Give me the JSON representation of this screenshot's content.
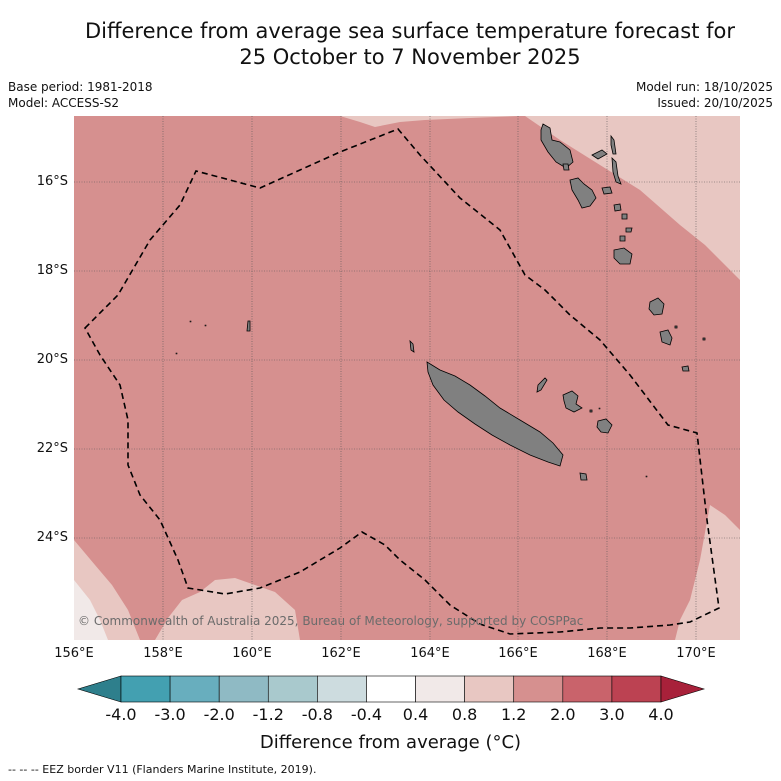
{
  "title_line1": "Difference from average sea surface temperature forecast for",
  "title_line2": "25 October to 7 November 2025",
  "base_period": "Base period: 1981-2018",
  "model": "Model: ACCESS-S2",
  "model_run": "Model run: 18/10/2025",
  "issued": "Issued: 20/10/2025",
  "latitude_labels": [
    "16°S",
    "18°S",
    "20°S",
    "22°S",
    "24°S"
  ],
  "longitude_labels": [
    "156°E",
    "158°E",
    "160°E",
    "162°E",
    "164°E",
    "166°E",
    "168°E",
    "170°E"
  ],
  "copyright": "© Commonwealth of Australia 2025, Bureau of Meteorology, supported by COSPPac",
  "colorbar": {
    "labels": [
      "-4.0",
      "-3.0",
      "-2.0",
      "-1.2",
      "-0.8",
      "-0.4",
      "0.4",
      "0.8",
      "1.2",
      "2.0",
      "3.0",
      "4.0"
    ],
    "colors": [
      "#2e7f8c",
      "#43a0b1",
      "#68aebe",
      "#8fbac4",
      "#a9c9cd",
      "#cddcdf",
      "#ffffff",
      "#f1e9e8",
      "#e8c7c2",
      "#d6908f",
      "#c9636b",
      "#bc4252",
      "#a8213a"
    ],
    "title": "Difference from average (°C)"
  },
  "legend_note": "--  --  -- EEZ border V11 (Flanders Marine Institute, 2019).",
  "fill_colors": {
    "main": "#d6908f",
    "light": "#e8c7c2",
    "faint": "#f1e9e8",
    "land": "#808080"
  }
}
